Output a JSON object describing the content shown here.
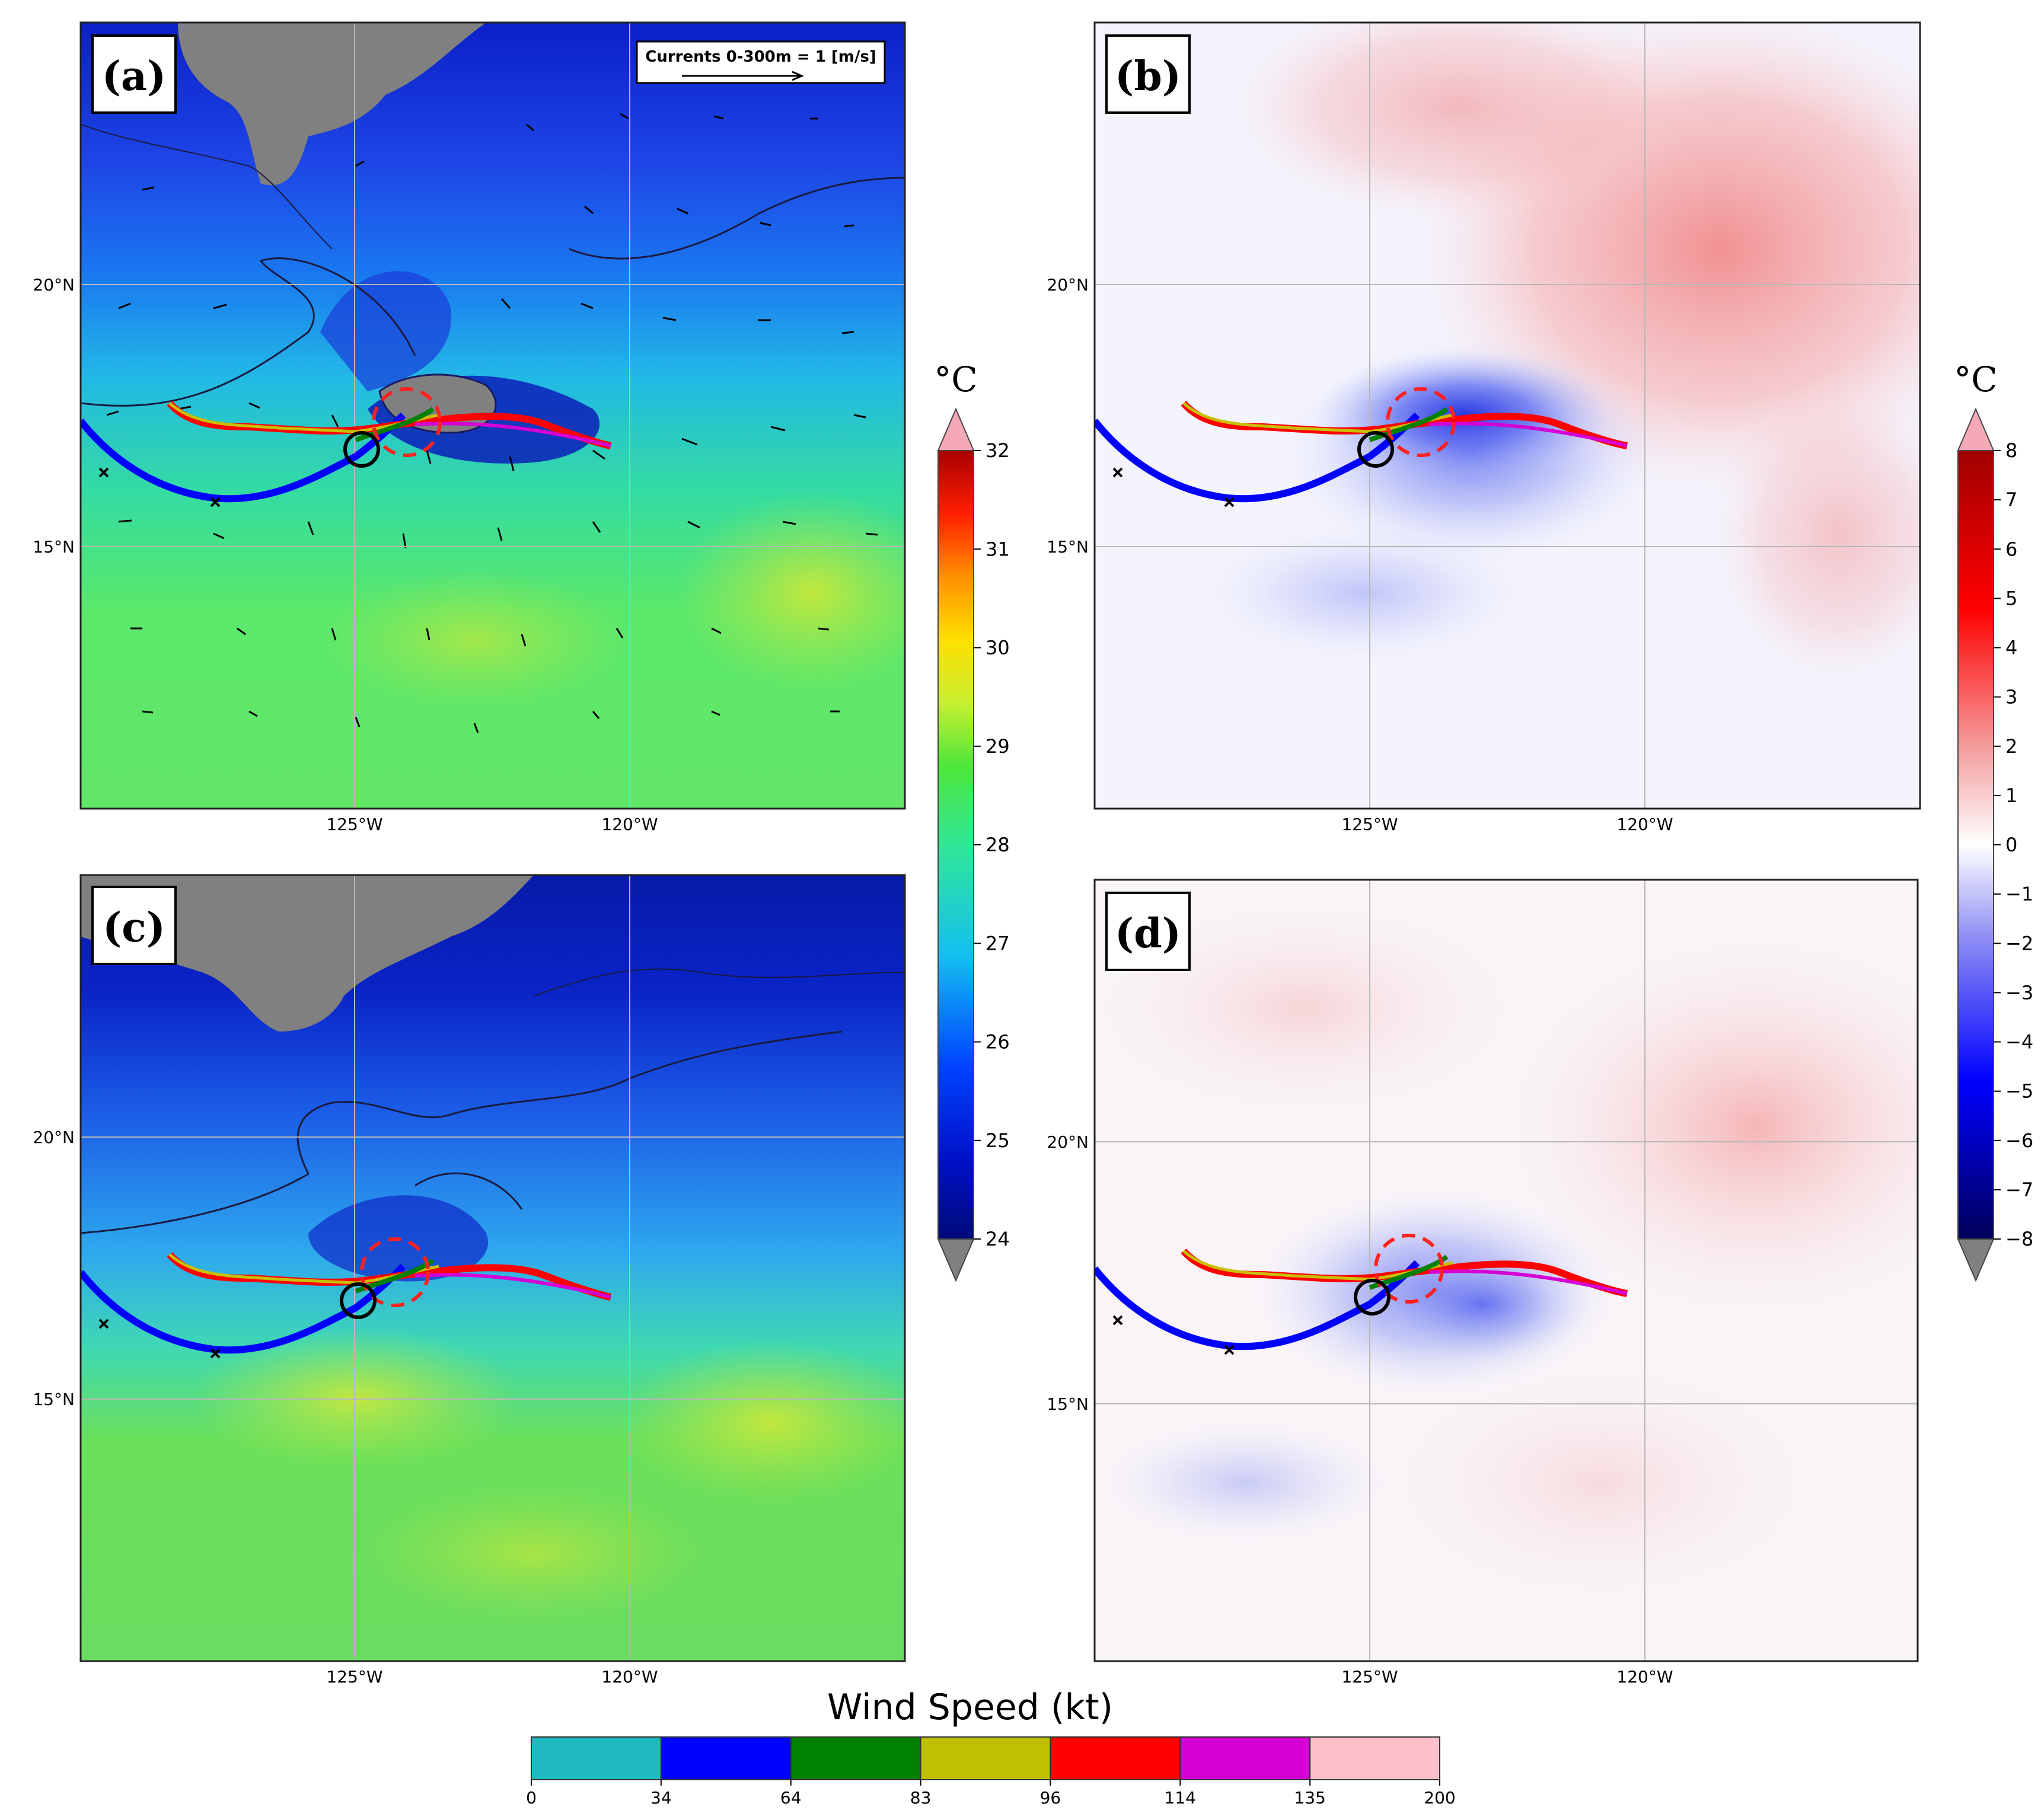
{
  "figure": {
    "panels": [
      {
        "id": "a",
        "label": "(a)",
        "kind": "sst",
        "land": true,
        "currents": true
      },
      {
        "id": "b",
        "label": "(b)",
        "kind": "anom",
        "land": false,
        "currents": false
      },
      {
        "id": "c",
        "label": "(c)",
        "kind": "sst",
        "land": true,
        "currents": false
      },
      {
        "id": "d",
        "label": "(d)",
        "kind": "anom",
        "land": false,
        "currents": false
      }
    ],
    "lat_labels": [
      "20°N",
      "15°N"
    ],
    "lon_labels": [
      "125°W",
      "120°W"
    ],
    "currents_legend": "Currents 0-300m = 1 [m/s]",
    "sst_colorbar": {
      "unit": "°C",
      "min": 24,
      "max": 32,
      "ticks": [
        "24",
        "25",
        "26",
        "27",
        "28",
        "29",
        "30",
        "31",
        "32"
      ]
    },
    "anom_colorbar": {
      "unit": "°C",
      "min": -8,
      "max": 8,
      "ticks": [
        "−8",
        "−7",
        "−6",
        "−5",
        "−4",
        "−3",
        "−2",
        "−1",
        "0",
        "1",
        "2",
        "3",
        "4",
        "5",
        "6",
        "7",
        "8"
      ]
    },
    "wind_colorbar": {
      "title": "Wind Speed (kt)",
      "ticks": [
        "0",
        "34",
        "64",
        "83",
        "96",
        "114",
        "135",
        "200"
      ],
      "colors": [
        "#1fb9c0",
        "#0000ff",
        "#008000",
        "#c0c000",
        "#ff0000",
        "#d400d4",
        "#ffc0cb"
      ]
    }
  }
}
